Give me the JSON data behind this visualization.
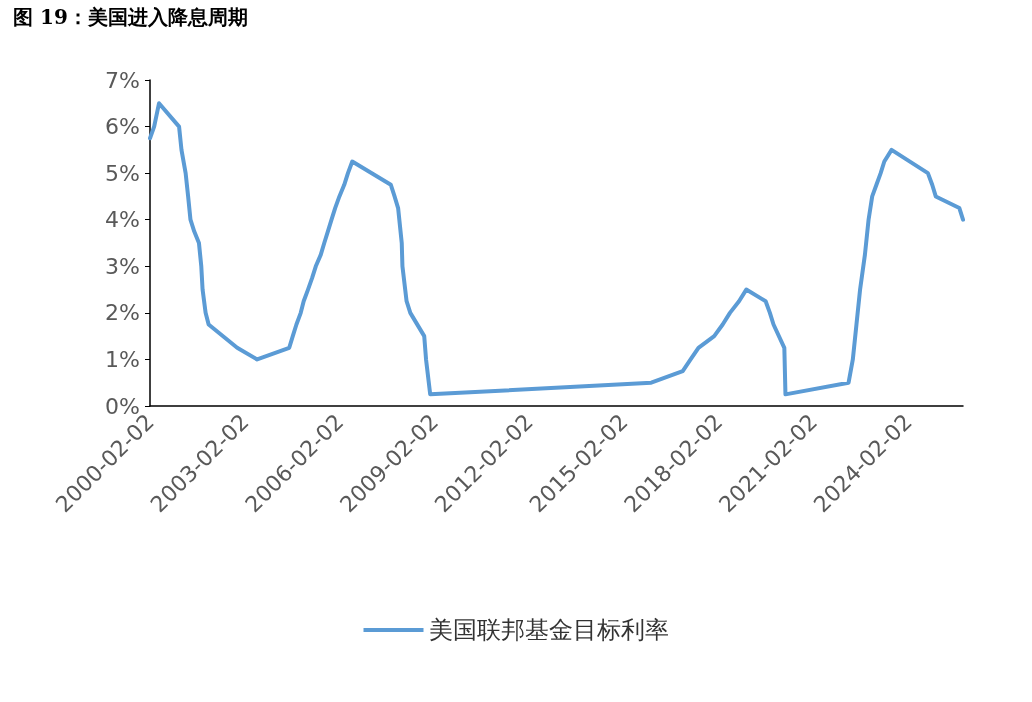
{
  "chart_data": {
    "type": "line",
    "title": "图 19：美国进入降息周期",
    "x": [
      "2000-02-02",
      "2000-03-21",
      "2000-05-16",
      "2001-01-03",
      "2001-01-31",
      "2001-03-20",
      "2001-04-18",
      "2001-05-15",
      "2001-06-27",
      "2001-08-21",
      "2001-09-17",
      "2001-10-02",
      "2001-11-06",
      "2001-12-11",
      "2002-11-06",
      "2003-06-25",
      "2004-06-30",
      "2004-08-10",
      "2004-09-21",
      "2004-11-10",
      "2004-12-14",
      "2005-02-02",
      "2005-03-22",
      "2005-05-03",
      "2005-06-30",
      "2005-08-09",
      "2005-09-20",
      "2005-11-01",
      "2005-12-13",
      "2006-01-31",
      "2006-03-28",
      "2006-05-10",
      "2006-06-29",
      "2007-09-18",
      "2007-10-31",
      "2007-12-11",
      "2008-01-22",
      "2008-01-30",
      "2008-03-18",
      "2008-04-30",
      "2008-10-08",
      "2008-10-29",
      "2008-12-16",
      "2015-12-16",
      "2016-12-14",
      "2017-03-15",
      "2017-06-14",
      "2017-12-13",
      "2018-03-21",
      "2018-06-13",
      "2018-09-26",
      "2018-12-19",
      "2019-07-31",
      "2019-09-18",
      "2019-10-30",
      "2020-03-03",
      "2020-03-16",
      "2022-03-16",
      "2022-05-04",
      "2022-06-15",
      "2022-07-27",
      "2022-09-21",
      "2022-11-02",
      "2022-12-14",
      "2023-02-01",
      "2023-03-22",
      "2023-05-03",
      "2023-07-26",
      "2024-09-18",
      "2024-11-07",
      "2024-12-18",
      "2025-09-17",
      "2025-10-29"
    ],
    "series": [
      {
        "name": "美国联邦基金目标利率",
        "color": "#5b9bd5",
        "values": [
          5.75,
          6,
          6.5,
          6,
          5.5,
          5,
          4.5,
          4,
          3.75,
          3.5,
          3,
          2.5,
          2,
          1.75,
          1.25,
          1,
          1.25,
          1.5,
          1.75,
          2,
          2.25,
          2.5,
          2.75,
          3,
          3.25,
          3.5,
          3.75,
          4,
          4.25,
          4.5,
          4.75,
          5,
          5.25,
          4.75,
          4.5,
          4.25,
          3.5,
          3,
          2.25,
          2,
          1.5,
          1,
          0.25,
          0.5,
          0.75,
          1,
          1.25,
          1.5,
          1.75,
          2,
          2.25,
          2.5,
          2.25,
          2,
          1.75,
          1.25,
          0.25,
          0.5,
          1,
          1.75,
          2.5,
          3.25,
          4,
          4.5,
          4.75,
          5,
          5.25,
          5.5,
          5,
          4.75,
          4.5,
          4.25,
          4
        ]
      }
    ],
    "xlim": [
      "2000-02-02",
      "2025-10-29"
    ],
    "xticks": [
      "2000-02-02",
      "2003-02-02",
      "2006-02-02",
      "2009-02-02",
      "2012-02-02",
      "2015-02-02",
      "2018-02-02",
      "2021-02-02",
      "2024-02-02"
    ],
    "ylim": [
      0,
      7
    ],
    "yticks": [
      {
        "value": 0,
        "label": "0%"
      },
      {
        "value": 1,
        "label": "1%"
      },
      {
        "value": 2,
        "label": "2%"
      },
      {
        "value": 3,
        "label": "3%"
      },
      {
        "value": 4,
        "label": "4%"
      },
      {
        "value": 5,
        "label": "5%"
      },
      {
        "value": 6,
        "label": "6%"
      },
      {
        "value": 7,
        "label": "7%"
      }
    ],
    "grid": false,
    "legend": "bottom",
    "marker": "none",
    "line_style": "solid"
  }
}
